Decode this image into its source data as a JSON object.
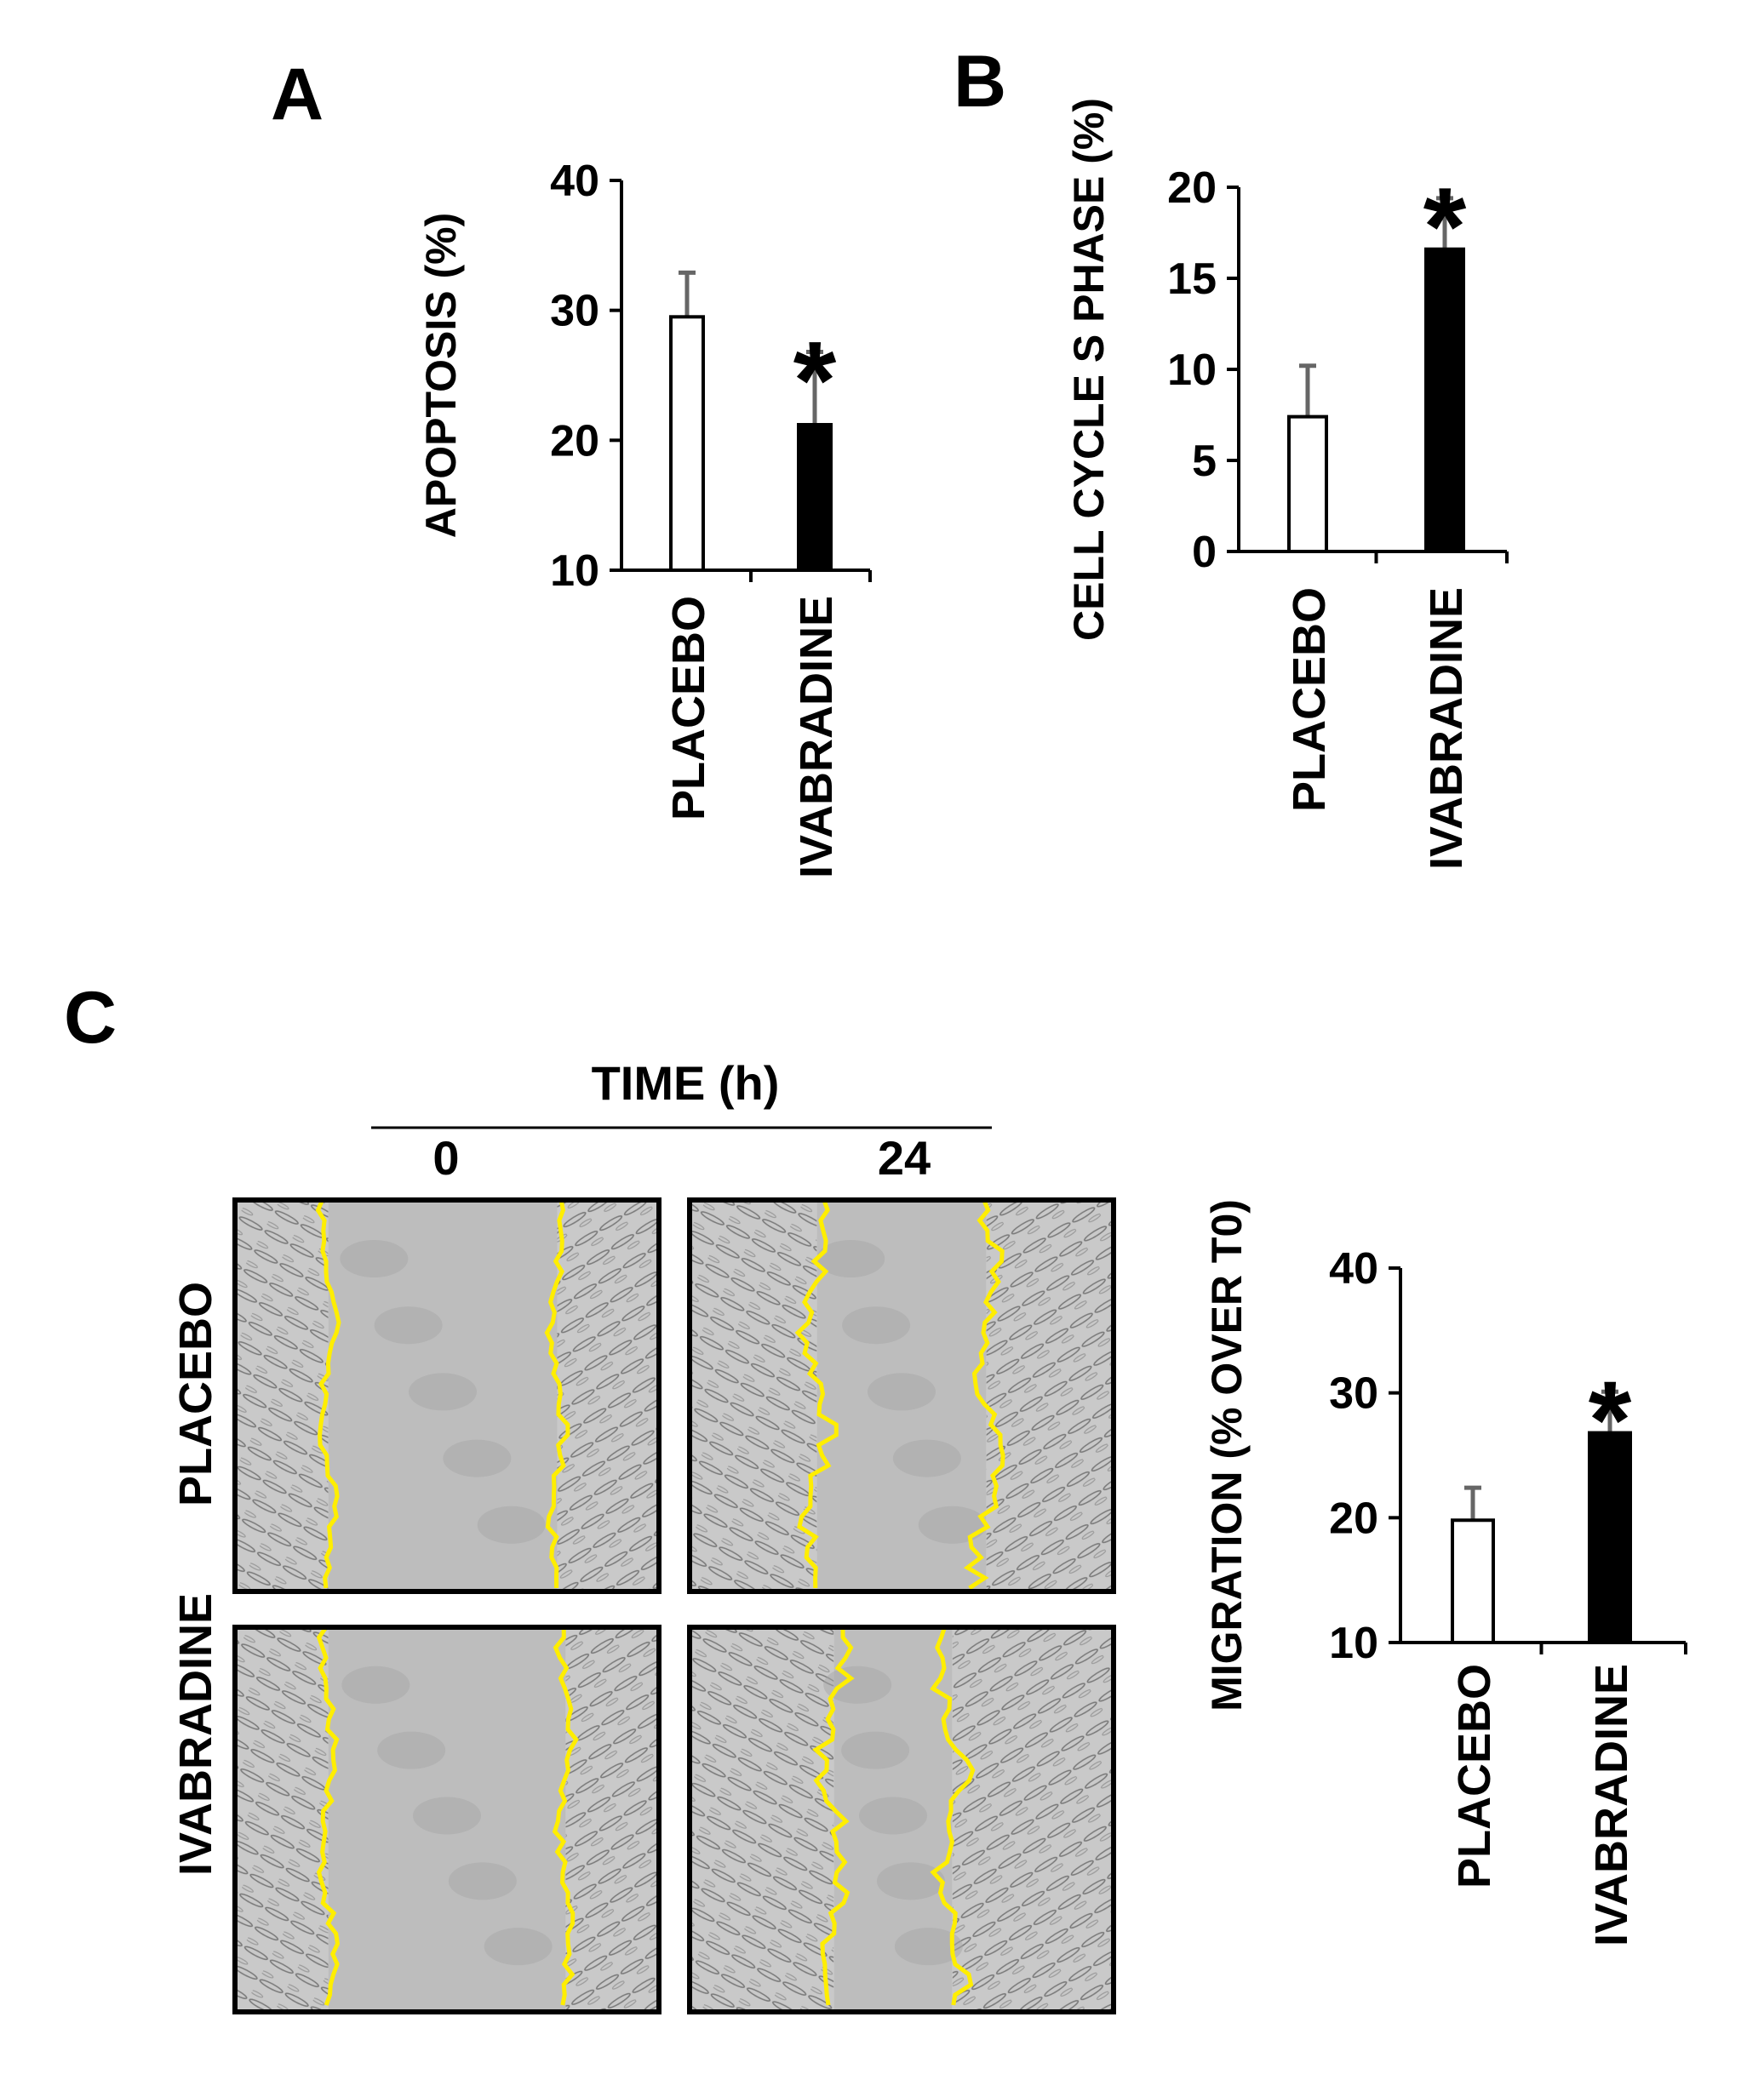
{
  "panels": {
    "A": {
      "letter": "A"
    },
    "B": {
      "letter": "B"
    },
    "C": {
      "letter": "C",
      "time_header": "TIME (h)",
      "time_points": [
        "0",
        "24"
      ],
      "row_labels": [
        "PLACEBO",
        "IVABRADINE"
      ]
    }
  },
  "colors": {
    "placebo_fill": "#ffffff",
    "ivabradine_fill": "#000000",
    "error_bar": "#666666",
    "wound_edge": "#ffee00",
    "micrograph_gray": "#bdbdbd"
  },
  "chart_data": [
    {
      "id": "A",
      "type": "bar",
      "categories": [
        "PLACEBO",
        "IVABRADINE"
      ],
      "values": [
        29.5,
        21.2
      ],
      "errors": [
        3.4,
        5.6
      ],
      "ylabel": "APOPTOSIS (%)",
      "ylim": [
        10,
        40
      ],
      "yticks": [
        10,
        20,
        30,
        40
      ],
      "significance": [
        "",
        "*"
      ]
    },
    {
      "id": "B",
      "type": "bar",
      "categories": [
        "PLACEBO",
        "IVABRADINE"
      ],
      "values": [
        7.4,
        16.6
      ],
      "errors": [
        2.8,
        2.8
      ],
      "ylabel": "CELL CYCLE S PHASE (%)",
      "ylim": [
        0,
        20
      ],
      "yticks": [
        0,
        5,
        10,
        15,
        20
      ],
      "significance": [
        "",
        "*"
      ]
    },
    {
      "id": "C",
      "type": "bar",
      "categories": [
        "PLACEBO",
        "IVABRADINE"
      ],
      "values": [
        19.8,
        26.8
      ],
      "errors": [
        2.6,
        3.3
      ],
      "ylabel": "MIGRATION  (% OVER T0)",
      "ylim": [
        10,
        40
      ],
      "yticks": [
        10,
        20,
        30,
        40
      ],
      "significance": [
        "",
        "*"
      ]
    }
  ]
}
